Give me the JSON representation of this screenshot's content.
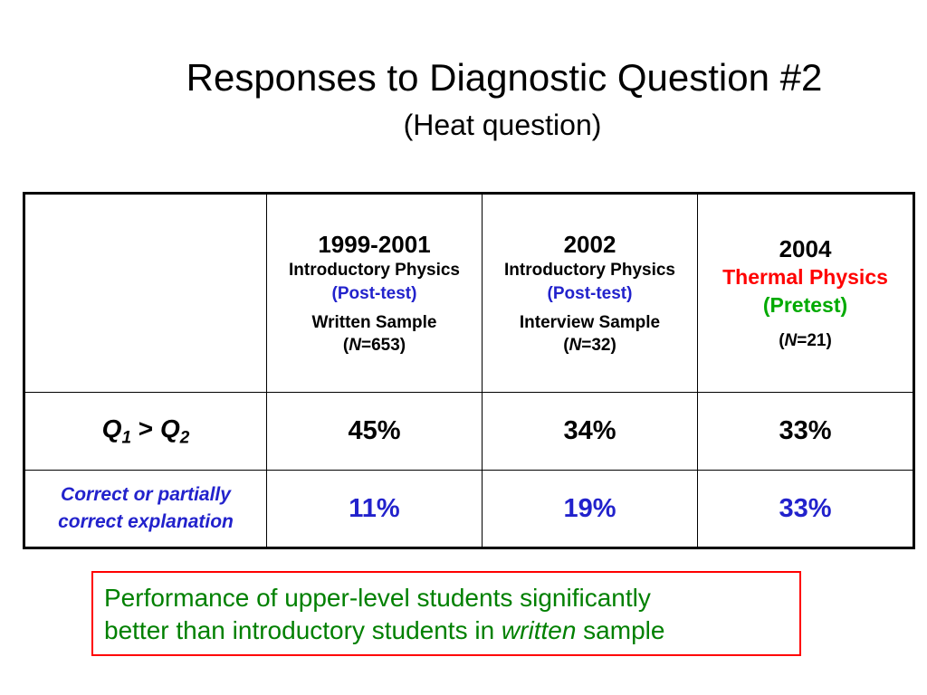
{
  "title": "Responses to Diagnostic Question #2",
  "subtitle": "(Heat question)",
  "table": {
    "columns": [
      {
        "year": "1999-2001",
        "course": "Introductory Physics",
        "phase": "(Post-test)",
        "sample": "Written Sample",
        "n_open": "(",
        "n_letter": "N",
        "n_value": "=653)"
      },
      {
        "year": "2002",
        "course": "Introductory Physics",
        "phase": "(Post-test)",
        "sample": "Interview Sample",
        "n_open": "(",
        "n_letter": "N",
        "n_value": "=32)"
      },
      {
        "year": "2004",
        "course": "Thermal Physics",
        "phase": "(Pretest)",
        "n_open": "(",
        "n_letter": "N",
        "n_value": "=21)"
      }
    ],
    "rows": [
      {
        "label_q1": "Q",
        "label_sub1": "1",
        "label_op": " > ",
        "label_q2": "Q",
        "label_sub2": "2",
        "values": [
          "45%",
          "34%",
          "33%"
        ]
      },
      {
        "label_line1": "Correct or partially",
        "label_line2": "correct explanation",
        "values": [
          "11%",
          "19%",
          "33%"
        ]
      }
    ],
    "colors": {
      "blue": "#2222cc",
      "red": "#ff0000",
      "green": "#00aa00"
    }
  },
  "note": {
    "line1": "Performance of upper-level students significantly",
    "line2_pre": "better than introductory students in ",
    "line2_em": "written",
    "line2_post": " sample",
    "text_color": "#008000",
    "border_color": "#ff0000"
  }
}
